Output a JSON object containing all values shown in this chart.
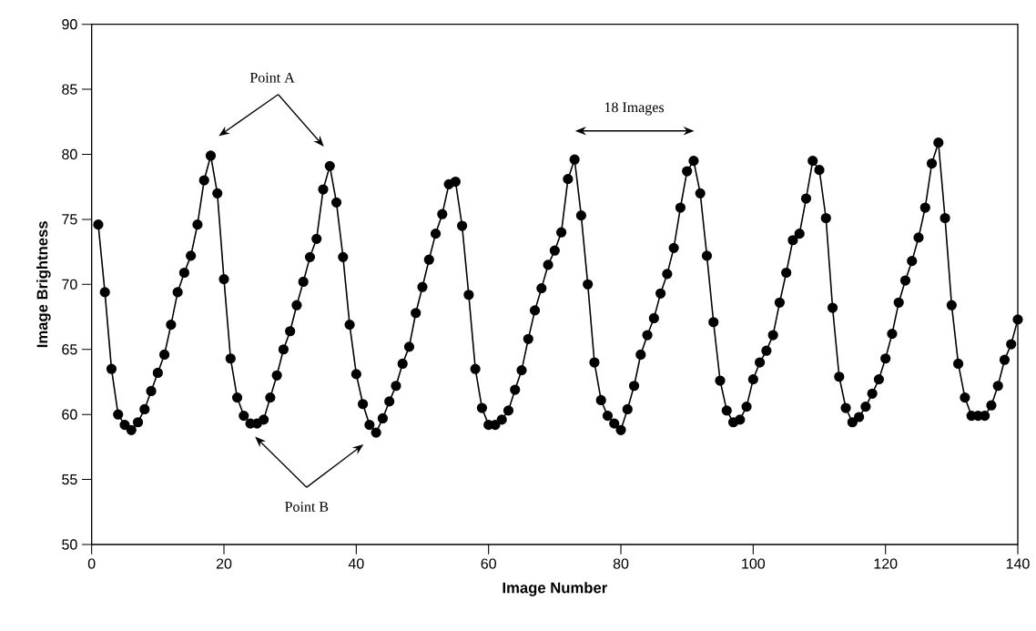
{
  "chart_data": {
    "type": "line",
    "xlabel": "Image Number",
    "ylabel": "Image Brightness",
    "x": [
      1,
      2,
      3,
      4,
      5,
      6,
      7,
      8,
      9,
      10,
      11,
      12,
      13,
      14,
      15,
      16,
      17,
      18,
      19,
      20,
      21,
      22,
      23,
      24,
      25,
      26,
      27,
      28,
      29,
      30,
      31,
      32,
      33,
      34,
      35,
      36,
      37,
      38,
      39,
      40,
      41,
      42,
      43,
      44,
      45,
      46,
      47,
      48,
      49,
      50,
      51,
      52,
      53,
      54,
      55,
      56,
      57,
      58,
      59,
      60,
      61,
      62,
      63,
      64,
      65,
      66,
      67,
      68,
      69,
      70,
      71,
      72,
      73,
      74,
      75,
      76,
      77,
      78,
      79,
      80,
      81,
      82,
      83,
      84,
      85,
      86,
      87,
      88,
      89,
      90,
      91,
      92,
      93,
      94,
      95,
      96,
      97,
      98,
      99,
      100,
      101,
      102,
      103,
      104,
      105,
      106,
      107,
      108,
      109,
      110,
      111,
      112,
      113,
      114,
      115,
      116,
      117,
      118,
      119,
      120,
      121,
      122,
      123,
      124,
      125,
      126,
      127,
      128,
      129,
      130,
      131,
      132,
      133,
      134,
      135,
      136,
      137,
      138,
      139,
      140
    ],
    "series": [
      {
        "color": "#000000",
        "values": [
          74.6,
          69.4,
          63.5,
          60.0,
          59.2,
          58.8,
          59.4,
          60.4,
          61.8,
          63.2,
          64.6,
          66.9,
          69.4,
          70.9,
          72.2,
          74.6,
          78.0,
          79.9,
          77.0,
          70.4,
          64.3,
          61.3,
          59.9,
          59.3,
          59.3,
          59.6,
          61.3,
          63.0,
          65.0,
          66.4,
          68.4,
          70.2,
          72.1,
          73.5,
          77.3,
          79.1,
          76.3,
          72.1,
          66.9,
          63.1,
          60.8,
          59.2,
          58.6,
          59.7,
          61.0,
          62.2,
          63.9,
          65.2,
          67.8,
          69.8,
          71.9,
          73.9,
          75.4,
          77.7,
          77.9,
          74.5,
          69.2,
          63.5,
          60.5,
          59.2,
          59.2,
          59.6,
          60.3,
          61.9,
          63.4,
          65.8,
          68.0,
          69.7,
          71.5,
          72.6,
          74.0,
          78.1,
          79.6,
          75.3,
          70.0,
          64.0,
          61.1,
          59.9,
          59.3,
          58.8,
          60.4,
          62.2,
          64.6,
          66.1,
          67.4,
          69.3,
          70.8,
          72.8,
          75.9,
          78.7,
          79.5,
          77.0,
          72.2,
          67.1,
          62.6,
          60.3,
          59.4,
          59.6,
          60.6,
          62.7,
          64.0,
          64.9,
          66.1,
          68.6,
          70.9,
          73.4,
          73.9,
          76.6,
          79.5,
          78.8,
          75.1,
          68.2,
          62.9,
          60.5,
          59.4,
          59.8,
          60.6,
          61.6,
          62.7,
          64.3,
          66.2,
          68.6,
          70.3,
          71.8,
          73.6,
          75.9,
          79.3,
          80.9,
          75.1,
          68.4,
          63.9,
          61.3,
          59.9,
          59.9,
          59.9,
          60.7,
          62.2,
          64.2,
          65.4,
          67.3
        ]
      }
    ],
    "marker": "circle",
    "line_style": "solid",
    "xlim": [
      0,
      140
    ],
    "ylim": [
      50,
      90
    ],
    "xticks": [
      0,
      20,
      40,
      60,
      80,
      100,
      120,
      140
    ],
    "yticks": [
      50,
      55,
      60,
      65,
      70,
      75,
      80,
      85,
      90
    ],
    "annotations": [
      "Point A",
      "Point B",
      "18 Images"
    ]
  }
}
